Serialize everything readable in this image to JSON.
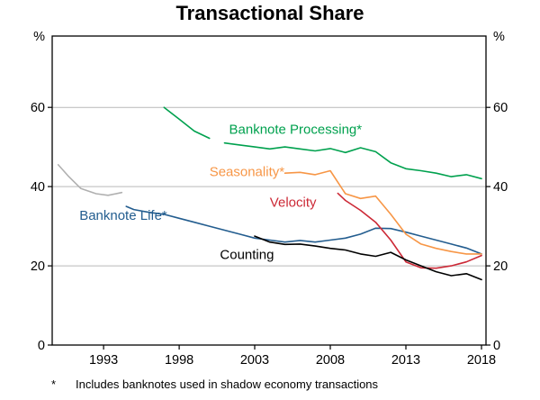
{
  "title": "Transactional Share",
  "footnote": {
    "marker": "*",
    "text": "Includes banknotes used in shadow economy transactions"
  },
  "chart_data": {
    "type": "line",
    "title": "Transactional Share",
    "unit": "%",
    "xlabel": "",
    "ylabel": "%",
    "xlim": [
      1989.6,
      2018.3
    ],
    "ylim": [
      0,
      78
    ],
    "xticks": [
      1993,
      1998,
      2003,
      2008,
      2013,
      2018
    ],
    "yticks": [
      0,
      20,
      40,
      60
    ],
    "gridlines": [
      20,
      40,
      60
    ],
    "grid": true,
    "legend_position": "inline-labels",
    "series": [
      {
        "id": "early-grey",
        "name": "",
        "color": "#b0b0b0",
        "points": [
          [
            1990,
            45.5
          ],
          [
            1990.7,
            42.5
          ],
          [
            1991.5,
            39.5
          ],
          [
            1992.5,
            38.2
          ],
          [
            1993.3,
            37.8
          ],
          [
            1994.2,
            38.5
          ]
        ]
      },
      {
        "id": "banknote-life",
        "name": "Banknote Life*",
        "color": "#235d8f",
        "points": [
          [
            1994.5,
            35
          ],
          [
            1995,
            34.2
          ],
          [
            1996,
            33.5
          ],
          [
            1997,
            33
          ],
          [
            1998,
            32
          ],
          [
            1999,
            31
          ],
          [
            2000,
            30
          ],
          [
            2001,
            29
          ],
          [
            2002,
            28
          ],
          [
            2003,
            27
          ],
          [
            2004,
            26.5
          ],
          [
            2005,
            26
          ],
          [
            2006,
            26.4
          ],
          [
            2007,
            26
          ],
          [
            2008,
            26.5
          ],
          [
            2009,
            27
          ],
          [
            2010,
            28
          ],
          [
            2011,
            29.5
          ],
          [
            2012,
            29.4
          ],
          [
            2013,
            28.5
          ],
          [
            2014,
            27.5
          ],
          [
            2015,
            26.5
          ],
          [
            2016,
            25.5
          ],
          [
            2017,
            24.5
          ],
          [
            2018,
            23
          ]
        ]
      },
      {
        "id": "banknote-processing",
        "name": "Banknote Processing*",
        "color": "#00a14e",
        "points": [
          [
            1997,
            60
          ],
          [
            1998,
            57
          ],
          [
            1999,
            54
          ],
          [
            2000,
            52.2
          ],
          [
            2000.5,
            null
          ],
          [
            2001,
            51
          ],
          [
            2002,
            50.5
          ],
          [
            2003,
            50
          ],
          [
            2004,
            49.5
          ],
          [
            2005,
            50
          ],
          [
            2006,
            49.5
          ],
          [
            2007,
            49
          ],
          [
            2008,
            49.6
          ],
          [
            2009,
            48.6
          ],
          [
            2010,
            49.8
          ],
          [
            2011,
            48.8
          ],
          [
            2012,
            46
          ],
          [
            2013,
            44.5
          ],
          [
            2014,
            44
          ],
          [
            2015,
            43.4
          ],
          [
            2016,
            42.5
          ],
          [
            2017,
            43
          ],
          [
            2018,
            42
          ]
        ]
      },
      {
        "id": "seasonality",
        "name": "Seasonality*",
        "color": "#f79646",
        "points": [
          [
            2005,
            43.4
          ],
          [
            2006,
            43.6
          ],
          [
            2007,
            43
          ],
          [
            2008,
            44
          ],
          [
            2009,
            38.2
          ],
          [
            2010,
            37
          ],
          [
            2011,
            37.6
          ],
          [
            2012,
            33
          ],
          [
            2013,
            28
          ],
          [
            2014,
            25.5
          ],
          [
            2015,
            24.4
          ],
          [
            2016,
            23.6
          ],
          [
            2017,
            23
          ],
          [
            2018,
            23
          ]
        ]
      },
      {
        "id": "velocity",
        "name": "Velocity",
        "color": "#cc2936",
        "points": [
          [
            2008.5,
            38.3
          ],
          [
            2009,
            36.5
          ],
          [
            2010,
            34
          ],
          [
            2011,
            31
          ],
          [
            2012,
            26.5
          ],
          [
            2013,
            21
          ],
          [
            2014,
            19.5
          ],
          [
            2015,
            19.4
          ],
          [
            2016,
            20
          ],
          [
            2017,
            21
          ],
          [
            2018,
            22.6
          ]
        ]
      },
      {
        "id": "counting",
        "name": "Counting",
        "color": "#000000",
        "points": [
          [
            2003,
            27.5
          ],
          [
            2004,
            26
          ],
          [
            2005,
            25.4
          ],
          [
            2006,
            25.5
          ],
          [
            2007,
            25
          ],
          [
            2008,
            24.4
          ],
          [
            2009,
            24
          ],
          [
            2010,
            23
          ],
          [
            2011,
            22.4
          ],
          [
            2012,
            23.4
          ],
          [
            2013,
            21.5
          ],
          [
            2014,
            20
          ],
          [
            2015,
            18.5
          ],
          [
            2016,
            17.5
          ],
          [
            2017,
            18
          ],
          [
            2018,
            16.5
          ]
        ]
      }
    ],
    "labels": [
      {
        "text": "Banknote Processing*",
        "x": 2001.3,
        "y": 54.5,
        "color": "#00a14e"
      },
      {
        "text": "Seasonality*",
        "x": 2000.0,
        "y": 43.8,
        "color": "#f79646"
      },
      {
        "text": "Velocity",
        "x": 2004.0,
        "y": 36.0,
        "color": "#cc2936"
      },
      {
        "text": "Banknote Life*",
        "x": 1991.4,
        "y": 32.7,
        "color": "#235d8f"
      },
      {
        "text": "Counting",
        "x": 2000.7,
        "y": 22.8,
        "color": "#000000"
      }
    ]
  }
}
